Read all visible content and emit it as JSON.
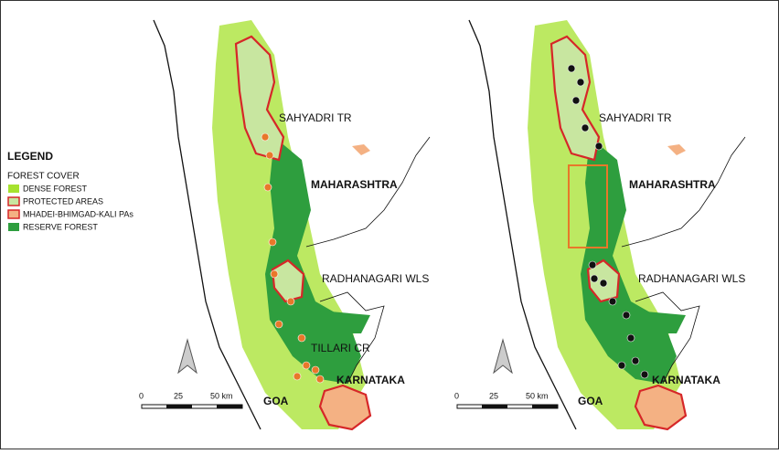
{
  "legend": {
    "title": "LEGEND",
    "subtitle": "FOREST COVER",
    "items": [
      {
        "label": "DENSE FOREST",
        "color": "#a6e22e"
      },
      {
        "label": "PROTECTED AREAS",
        "color": "#c8e6a0"
      },
      {
        "label": "MHADEI-BHIMGAD-KALI PAs",
        "color": "#f4b183"
      },
      {
        "label": "RESERVE FOREST",
        "color": "#2e9e3e"
      }
    ]
  },
  "maps": [
    {
      "labels": [
        "SAHYADRI TR",
        "MAHARASHTRA",
        "RADHANAGARI WLS",
        "TILLARI CR",
        "KARNATAKA",
        "GOA"
      ],
      "scale": [
        "0",
        "25",
        "50 km"
      ]
    },
    {
      "labels": [
        "SAHYADRI TR",
        "MAHARASHTRA",
        "RADHANAGARI WLS",
        "KARNATAKA",
        "GOA"
      ],
      "scale": [
        "0",
        "25",
        "50 km"
      ]
    }
  ]
}
